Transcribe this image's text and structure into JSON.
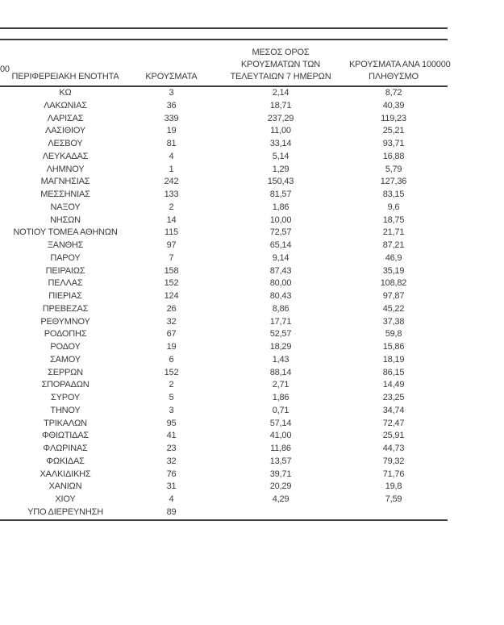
{
  "page": {
    "left_fragment": "00"
  },
  "colors": {
    "text": "#3b3b3b",
    "rule": "#3c3c3c",
    "background": "#ffffff"
  },
  "table": {
    "headers": {
      "region": "ΠΕΡΙΦΕΡΕΙΑΚΗ ΕΝΟΤΗΤΑ",
      "cases": "ΚΡΟΥΣΜΑΤΑ",
      "avg7_line1": "ΜΕΣΟΣ ΟΡΟΣ",
      "avg7_line2": "ΚΡΟΥΣΜΑΤΩΝ ΤΩΝ",
      "avg7_line3": "ΤΕΛΕΥΤΑΙΩΝ 7 ΗΜΕΡΩΝ",
      "per100k_line1": "ΚΡΟΥΣΜΑΤΑ ΑΝΑ 100000",
      "per100k_line2": "ΠΛΗΘΥΣΜΟ"
    },
    "rows": [
      {
        "region": "ΚΩ",
        "cases": "3",
        "avg7": "2,14",
        "per100k": "8,72"
      },
      {
        "region": "ΛΑΚΩΝΙΑΣ",
        "cases": "36",
        "avg7": "18,71",
        "per100k": "40,39"
      },
      {
        "region": "ΛΑΡΙΣΑΣ",
        "cases": "339",
        "avg7": "237,29",
        "per100k": "119,23"
      },
      {
        "region": "ΛΑΣΙΘΙΟΥ",
        "cases": "19",
        "avg7": "11,00",
        "per100k": "25,21"
      },
      {
        "region": "ΛΕΣΒΟΥ",
        "cases": "81",
        "avg7": "33,14",
        "per100k": "93,71"
      },
      {
        "region": "ΛΕΥΚΑΔΑΣ",
        "cases": "4",
        "avg7": "5,14",
        "per100k": "16,88"
      },
      {
        "region": "ΛΗΜΝΟΥ",
        "cases": "1",
        "avg7": "1,29",
        "per100k": "5,79"
      },
      {
        "region": "ΜΑΓΝΗΣΙΑΣ",
        "cases": "242",
        "avg7": "150,43",
        "per100k": "127,36"
      },
      {
        "region": "ΜΕΣΣΗΝΙΑΣ",
        "cases": "133",
        "avg7": "81,57",
        "per100k": "83,15"
      },
      {
        "region": "ΝΑΞΟΥ",
        "cases": "2",
        "avg7": "1,86",
        "per100k": "9,6"
      },
      {
        "region": "ΝΗΣΩΝ",
        "cases": "14",
        "avg7": "10,00",
        "per100k": "18,75"
      },
      {
        "region": "ΝΟΤΙΟΥ ΤΟΜΕΑ ΑΘΗΝΩΝ",
        "cases": "115",
        "avg7": "72,57",
        "per100k": "21,71"
      },
      {
        "region": "ΞΑΝΘΗΣ",
        "cases": "97",
        "avg7": "65,14",
        "per100k": "87,21"
      },
      {
        "region": "ΠΑΡΟΥ",
        "cases": "7",
        "avg7": "9,14",
        "per100k": "46,9"
      },
      {
        "region": "ΠΕΙΡΑΙΩΣ",
        "cases": "158",
        "avg7": "87,43",
        "per100k": "35,19"
      },
      {
        "region": "ΠΕΛΛΑΣ",
        "cases": "152",
        "avg7": "80,00",
        "per100k": "108,82"
      },
      {
        "region": "ΠΙΕΡΙΑΣ",
        "cases": "124",
        "avg7": "80,43",
        "per100k": "97,87"
      },
      {
        "region": "ΠΡΕΒΕΖΑΣ",
        "cases": "26",
        "avg7": "8,86",
        "per100k": "45,22"
      },
      {
        "region": "ΡΕΘΥΜΝΟΥ",
        "cases": "32",
        "avg7": "17,71",
        "per100k": "37,38"
      },
      {
        "region": "ΡΟΔΟΠΗΣ",
        "cases": "67",
        "avg7": "52,57",
        "per100k": "59,8"
      },
      {
        "region": "ΡΟΔΟΥ",
        "cases": "19",
        "avg7": "18,29",
        "per100k": "15,86"
      },
      {
        "region": "ΣΑΜΟΥ",
        "cases": "6",
        "avg7": "1,43",
        "per100k": "18,19"
      },
      {
        "region": "ΣΕΡΡΩΝ",
        "cases": "152",
        "avg7": "88,14",
        "per100k": "86,15"
      },
      {
        "region": "ΣΠΟΡΑΔΩΝ",
        "cases": "2",
        "avg7": "2,71",
        "per100k": "14,49"
      },
      {
        "region": "ΣΥΡΟΥ",
        "cases": "5",
        "avg7": "1,86",
        "per100k": "23,25"
      },
      {
        "region": "ΤΗΝΟΥ",
        "cases": "3",
        "avg7": "0,71",
        "per100k": "34,74"
      },
      {
        "region": "ΤΡΙΚΑΛΩΝ",
        "cases": "95",
        "avg7": "57,14",
        "per100k": "72,47"
      },
      {
        "region": "ΦΘΙΩΤΙΔΑΣ",
        "cases": "41",
        "avg7": "41,00",
        "per100k": "25,91"
      },
      {
        "region": "ΦΛΩΡΙΝΑΣ",
        "cases": "23",
        "avg7": "11,86",
        "per100k": "44,73"
      },
      {
        "region": "ΦΩΚΙΔΑΣ",
        "cases": "32",
        "avg7": "13,57",
        "per100k": "79,32"
      },
      {
        "region": "ΧΑΛΚΙΔΙΚΗΣ",
        "cases": "76",
        "avg7": "39,71",
        "per100k": "71,76"
      },
      {
        "region": "ΧΑΝΙΩΝ",
        "cases": "31",
        "avg7": "20,29",
        "per100k": "19,8"
      },
      {
        "region": "ΧΙΟΥ",
        "cases": "4",
        "avg7": "4,29",
        "per100k": "7,59"
      },
      {
        "region": "ΥΠΟ ΔΙΕΡΕΥΝΗΣΗ",
        "cases": "89",
        "avg7": "",
        "per100k": ""
      }
    ]
  }
}
